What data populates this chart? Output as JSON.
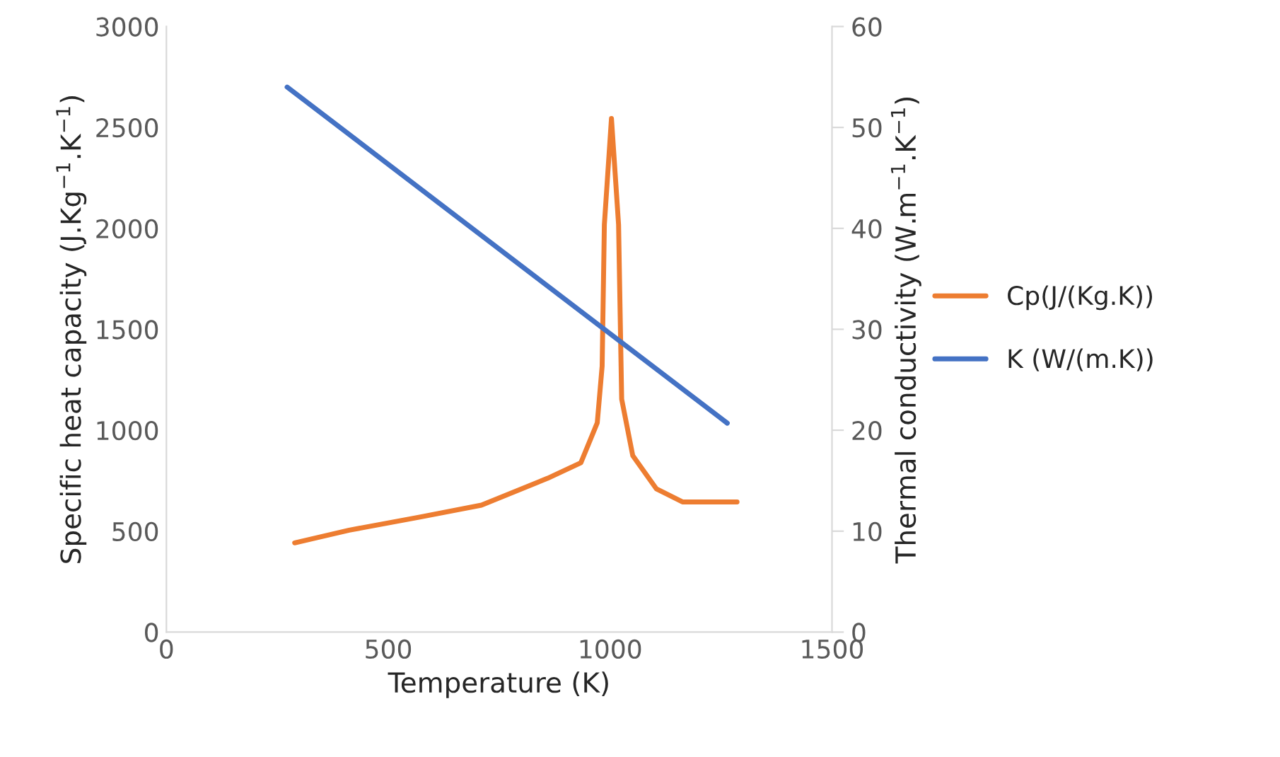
{
  "chart_data": {
    "type": "line",
    "xlabel": "Temperature (K)",
    "ylabel": "Specific heat capacity (J.Kg$^{−1}$.K$^{−1}$)",
    "y2label": "Thermal conductivity (W.m$^{−1}$.K$^{−1}$)",
    "series": [
      {
        "name": "Cp(J/(Kg.K))",
        "color": "#ed7d31",
        "x": [
          289,
          412,
          571,
          710,
          859,
          934,
          971,
          982,
          987,
          1003,
          1019,
          1026,
          1051,
          1104,
          1163,
          1286
        ],
        "values": [
          442,
          505,
          570,
          629,
          762,
          839,
          1037,
          1318,
          2019,
          2544,
          2019,
          1154,
          874,
          710,
          645,
          645
        ]
      },
      {
        "name": "K (W/(m.K))",
        "color": "#4472c4",
        "axis": "y2",
        "x": [
          272,
          1264
        ],
        "values": [
          54,
          20.7
        ]
      }
    ],
    "xlim": [
      0,
      1500
    ],
    "xticks": [
      0,
      500,
      1000,
      1500
    ],
    "ylim": [
      0,
      3000
    ],
    "yticks": [
      0,
      500,
      1000,
      1500,
      2000,
      2500,
      3000
    ],
    "y2lim": [
      0,
      60
    ],
    "y2ticks": [
      0,
      10,
      20,
      30,
      40,
      50,
      60
    ],
    "grid": false,
    "legend": "right",
    "marker": "none",
    "line_style": "solid"
  }
}
